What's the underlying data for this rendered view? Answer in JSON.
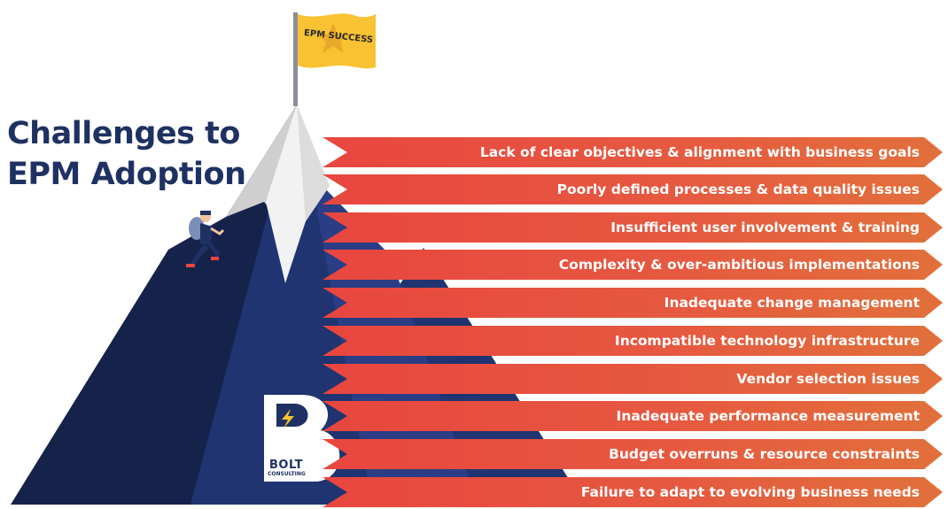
{
  "title": {
    "line1": "Challenges to",
    "line2": "EPM Adoption"
  },
  "flag": {
    "label": "EPM SUCCESS",
    "color": "#f8c232"
  },
  "challenges": [
    "Lack of clear objectives & alignment with business goals",
    "Poorly defined processes & data quality issues",
    "Insufficient user involvement & training",
    "Complexity & over-ambitious implementations",
    "Inadequate change management",
    "Incompatible technology infrastructure",
    "Vendor selection issues",
    "Inadequate performance measurement",
    "Budget overruns & resource constraints",
    "Failure to adapt to evolving business needs"
  ],
  "logo": {
    "name": "BOLT",
    "subtitle": "CONSULTING",
    "icon": "lightning-bolt-icon"
  },
  "colors": {
    "title": "#1e3162",
    "mountain_dark": "#15224a",
    "mountain_mid": "#1f3470",
    "mountain_light": "#2b3f86",
    "banner": "#e8503f",
    "snow": "#e3e3e3"
  },
  "icons": {
    "climber": "climber-figure",
    "flag": "flag-icon"
  }
}
